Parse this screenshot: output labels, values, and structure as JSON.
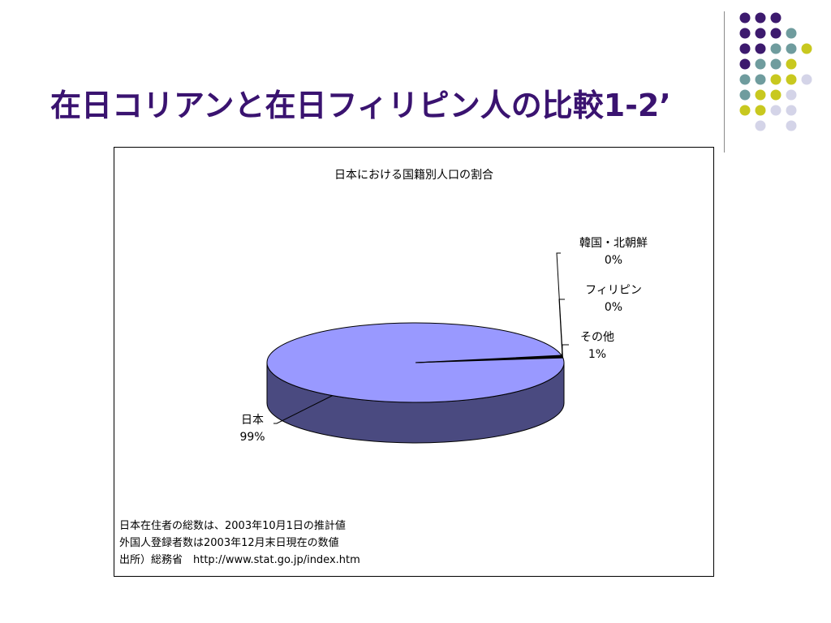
{
  "slide": {
    "title": "在日コリアンと在日フィリピン人の比較1-2’"
  },
  "decoration": {
    "dot_colors": [
      "#3d1a6e",
      "#6f9c9e",
      "#c8c81f",
      "#d4d4e8"
    ]
  },
  "chart_data": {
    "type": "pie",
    "title": "日本における国籍別人口の割合",
    "slices": [
      {
        "name": "日本",
        "percent_label": "99%",
        "value": 99.0,
        "color": "#9999ff"
      },
      {
        "name": "韓国・北朝鮮",
        "percent_label": "0%",
        "value": 0.4,
        "color": "#993366"
      },
      {
        "name": "フィリピン",
        "percent_label": "0%",
        "value": 0.1,
        "color": "#ffffcc"
      },
      {
        "name": "その他",
        "percent_label": "1%",
        "value": 0.5,
        "color": "#ccffff"
      }
    ],
    "style": "3d"
  },
  "footnotes": [
    "日本在住者の総数は、2003年10月1日の推計値",
    "外国人登録者数は2003年12月末日現在の数値",
    "出所）総務省　http://www.stat.go.jp/index.htm"
  ]
}
